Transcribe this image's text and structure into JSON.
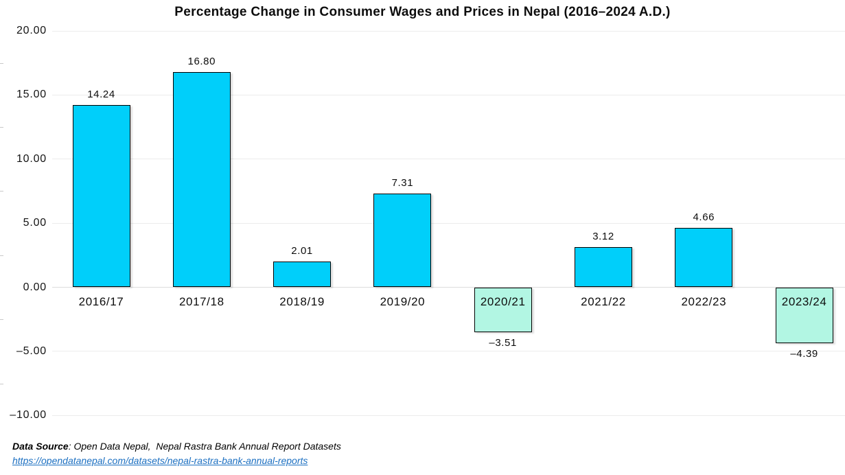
{
  "title": "Percentage Change in Consumer Wages and Prices in Nepal (2016–2024 A.D.)",
  "chart_data": {
    "type": "bar",
    "title": "Percentage Change in Consumer Wages and Prices in Nepal (2016–2024 A.D.)",
    "categories": [
      "2016/17",
      "2017/18",
      "2018/19",
      "2019/20",
      "2020/21",
      "2021/22",
      "2022/23",
      "2023/24"
    ],
    "values": [
      14.24,
      16.8,
      2.01,
      7.31,
      -3.51,
      3.12,
      4.66,
      -4.39
    ],
    "value_labels": [
      "14.24",
      "16.80",
      "2.01",
      "7.31",
      "–3.51",
      "3.12",
      "4.66",
      "–4.39"
    ],
    "xlabel": "",
    "ylabel": "",
    "ylim": [
      -10,
      20
    ],
    "yticks": [
      20,
      15,
      10,
      5,
      0,
      -5,
      -10
    ],
    "ytick_labels": [
      "20.00",
      "15.00",
      "10.00",
      "5.00",
      "0.00",
      "–5.00",
      "–10.00"
    ],
    "grid": "horizontal",
    "legend": "none",
    "positive_bar_color": "#00CFFA",
    "negative_bar_color": "#B2F6E3",
    "bar_border_color": "#000000"
  },
  "footer": {
    "source_label": "Data Source",
    "source_text": ": Open Data Nepal,  Nepal Rastra Bank Annual Report Datasets",
    "link_text": "https://opendatanepal.com/datasets/nepal-rastra-bank-annual-reports",
    "link_color": "#1B6FC1"
  }
}
